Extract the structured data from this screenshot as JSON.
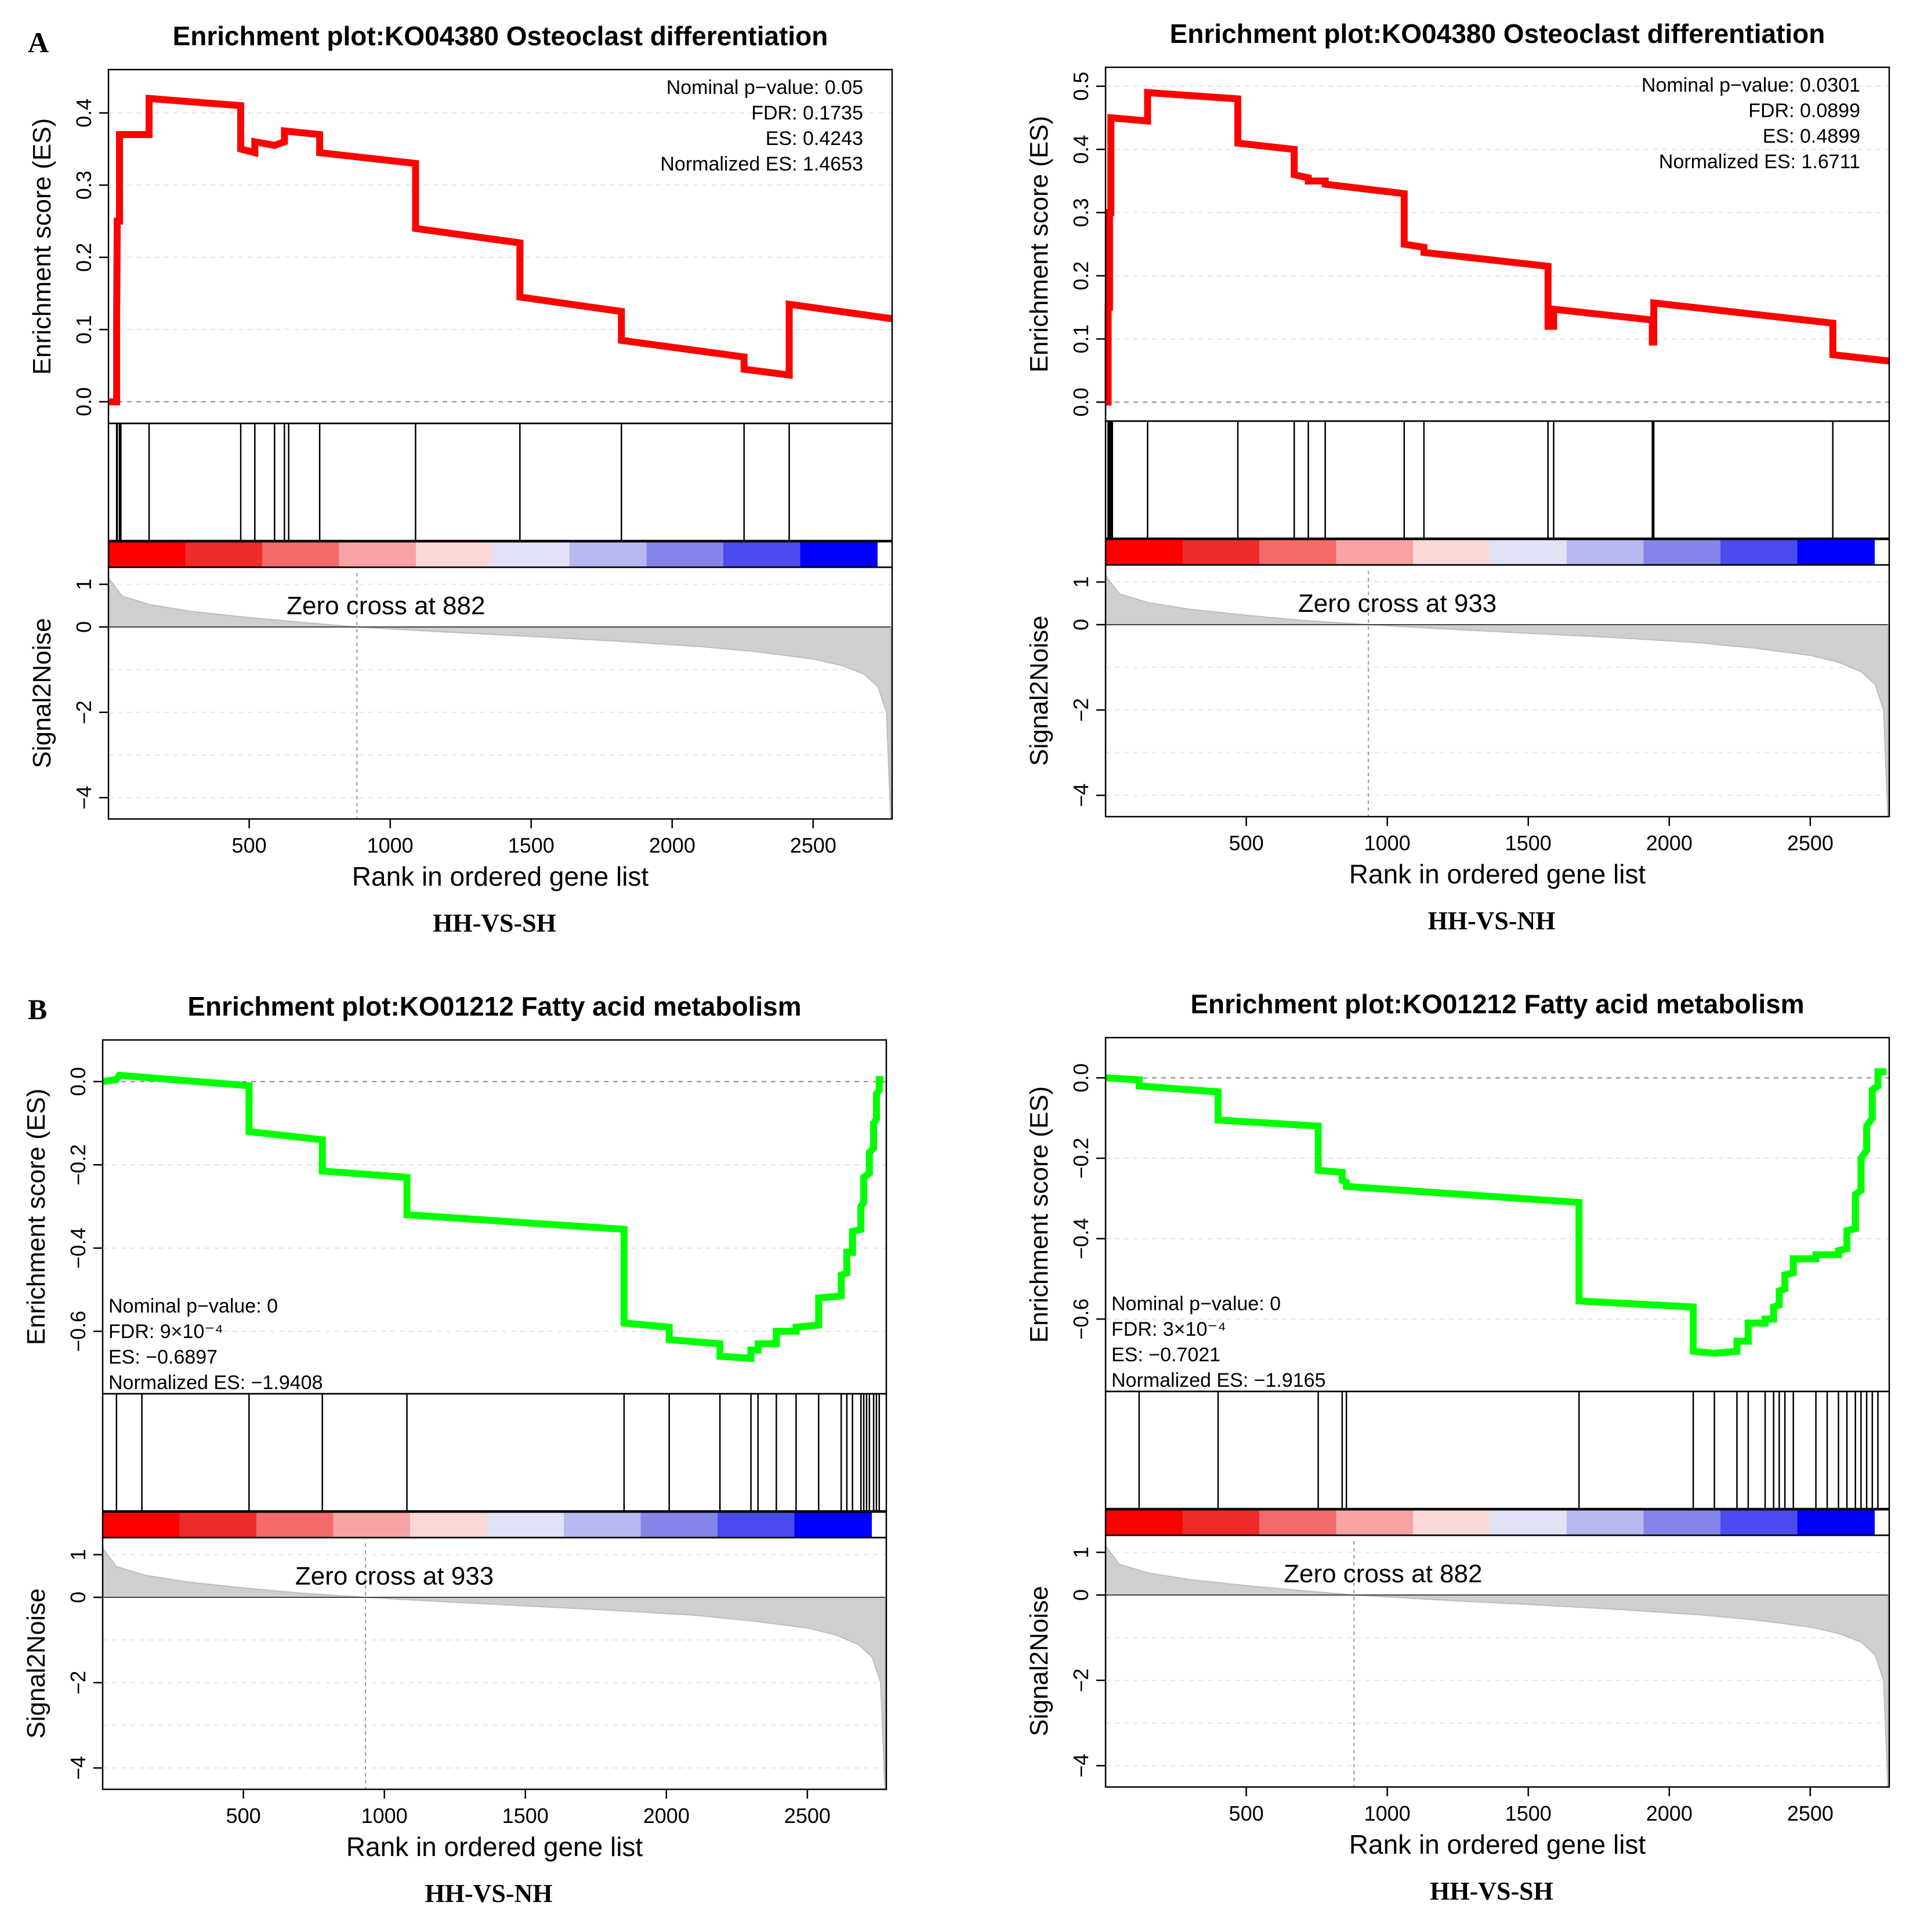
{
  "figure": {
    "panel_labels": [
      "A",
      "B"
    ],
    "common": {
      "xlabel": "Rank in ordered gene list",
      "es_ylabel": "Enrichment score (ES)",
      "s2n_ylabel": "Signal2Noise",
      "x_ticks": [
        500,
        1000,
        1500,
        2000,
        2500
      ],
      "s2n_ticks": [
        1,
        0,
        -2,
        -4
      ]
    }
  },
  "chart_data": [
    {
      "type": "line",
      "panel": "A",
      "title": "Enrichment plot:KO04380 Osteoclast differentiation",
      "caption": "HH-VS-SH",
      "line_color": "#ff0000",
      "xlabel": "Rank in ordered gene list",
      "ylabel": "Enrichment score (ES)",
      "xlim": [
        1,
        2780
      ],
      "ylim": [
        -0.03,
        0.46
      ],
      "y_ticks": [
        0.0,
        0.1,
        0.2,
        0.3,
        0.4
      ],
      "y_tick_labels": [
        "0.0",
        "0.1",
        "0.2",
        "0.3",
        "0.4"
      ],
      "stats_position": "top-right",
      "stats": [
        "Nominal p−value: 0.05",
        "FDR: 0.1735",
        "ES: 0.4243",
        "Normalized ES: 1.4653"
      ],
      "zero_cross": 882,
      "zero_cross_label": "Zero cross at 882",
      "hits": [
        30,
        32,
        40,
        42,
        45,
        145,
        470,
        520,
        590,
        625,
        640,
        750,
        1090,
        1460,
        1820,
        2255,
        2415
      ],
      "es_points": [
        [
          1,
          0.0
        ],
        [
          30,
          0.0
        ],
        [
          30,
          0.12
        ],
        [
          32,
          0.25
        ],
        [
          40,
          0.25
        ],
        [
          40,
          0.37
        ],
        [
          145,
          0.37
        ],
        [
          145,
          0.42
        ],
        [
          470,
          0.41
        ],
        [
          470,
          0.35
        ],
        [
          520,
          0.345
        ],
        [
          520,
          0.36
        ],
        [
          590,
          0.355
        ],
        [
          625,
          0.36
        ],
        [
          625,
          0.375
        ],
        [
          750,
          0.37
        ],
        [
          750,
          0.345
        ],
        [
          1090,
          0.33
        ],
        [
          1090,
          0.24
        ],
        [
          1460,
          0.22
        ],
        [
          1460,
          0.145
        ],
        [
          1820,
          0.125
        ],
        [
          1820,
          0.085
        ],
        [
          2255,
          0.062
        ],
        [
          2255,
          0.045
        ],
        [
          2415,
          0.037
        ],
        [
          2415,
          0.135
        ],
        [
          2780,
          0.115
        ]
      ],
      "s2n_ylim": [
        -4.5,
        1.4
      ],
      "s2n_ranks": [
        1,
        50,
        150,
        300,
        500,
        700,
        882,
        1200,
        1500,
        1800,
        2100,
        2300,
        2500,
        2600,
        2680,
        2730,
        2760,
        2775
      ],
      "s2n_values": [
        1.15,
        0.72,
        0.52,
        0.36,
        0.22,
        0.1,
        0.0,
        -0.12,
        -0.22,
        -0.33,
        -0.46,
        -0.58,
        -0.75,
        -0.9,
        -1.1,
        -1.4,
        -2.0,
        -4.5
      ]
    },
    {
      "type": "line",
      "panel": "A",
      "title": "Enrichment plot:KO04380 Osteoclast differentiation",
      "caption": "HH-VS-NH",
      "line_color": "#ff0000",
      "xlabel": "Rank in ordered gene list",
      "ylabel": "Enrichment score (ES)",
      "xlim": [
        1,
        2780
      ],
      "ylim": [
        -0.03,
        0.53
      ],
      "y_ticks": [
        0.0,
        0.1,
        0.2,
        0.3,
        0.4,
        0.5
      ],
      "y_tick_labels": [
        "0.0",
        "0.1",
        "0.2",
        "0.3",
        "0.4",
        "0.5"
      ],
      "stats_position": "top-right",
      "stats": [
        "Nominal p−value: 0.0301",
        "FDR: 0.0899",
        "ES: 0.4899",
        "Normalized ES: 1.6711"
      ],
      "zero_cross": 933,
      "zero_cross_label": "Zero cross at 933",
      "hits": [
        10,
        15,
        20,
        25,
        150,
        470,
        670,
        720,
        780,
        1060,
        1130,
        1570,
        1590,
        1940,
        1945,
        2580
      ],
      "es_points": [
        [
          1,
          0.0
        ],
        [
          10,
          0.0
        ],
        [
          10,
          0.15
        ],
        [
          15,
          0.15
        ],
        [
          15,
          0.3
        ],
        [
          20,
          0.3
        ],
        [
          20,
          0.45
        ],
        [
          150,
          0.445
        ],
        [
          150,
          0.49
        ],
        [
          470,
          0.48
        ],
        [
          470,
          0.41
        ],
        [
          670,
          0.4
        ],
        [
          670,
          0.36
        ],
        [
          720,
          0.355
        ],
        [
          720,
          0.35
        ],
        [
          780,
          0.35
        ],
        [
          780,
          0.345
        ],
        [
          1060,
          0.33
        ],
        [
          1060,
          0.25
        ],
        [
          1130,
          0.245
        ],
        [
          1130,
          0.237
        ],
        [
          1570,
          0.215
        ],
        [
          1570,
          0.12
        ],
        [
          1590,
          0.12
        ],
        [
          1590,
          0.147
        ],
        [
          1940,
          0.13
        ],
        [
          1940,
          0.095
        ],
        [
          1945,
          0.095
        ],
        [
          1945,
          0.157
        ],
        [
          2580,
          0.125
        ],
        [
          2580,
          0.075
        ],
        [
          2780,
          0.065
        ]
      ],
      "s2n_ylim": [
        -4.5,
        1.4
      ],
      "s2n_ranks": [
        1,
        50,
        150,
        300,
        500,
        700,
        933,
        1200,
        1500,
        1800,
        2100,
        2300,
        2500,
        2600,
        2680,
        2730,
        2760,
        2775
      ],
      "s2n_values": [
        1.15,
        0.72,
        0.52,
        0.36,
        0.22,
        0.1,
        0.0,
        -0.1,
        -0.2,
        -0.3,
        -0.42,
        -0.55,
        -0.72,
        -0.88,
        -1.1,
        -1.4,
        -2.0,
        -4.5
      ]
    },
    {
      "type": "line",
      "panel": "B",
      "title": "Enrichment plot:KO01212 Fatty acid metabolism",
      "caption": "HH-VS-NH",
      "line_color": "#00ff00",
      "xlabel": "Rank in ordered gene list",
      "ylabel": "Enrichment score (ES)",
      "xlim": [
        1,
        2780
      ],
      "ylim": [
        -0.75,
        0.1
      ],
      "y_ticks": [
        0.0,
        -0.2,
        -0.4,
        -0.6
      ],
      "y_tick_labels": [
        "0.0",
        "−0.2",
        "−0.4",
        "−0.6"
      ],
      "stats_position": "bottom-left",
      "stats": [
        "Nominal p−value: 0",
        "FDR: 9×10⁻⁴",
        "ES: −0.6897",
        "Normalized ES: −1.9408"
      ],
      "zero_cross": 933,
      "zero_cross_label": "Zero cross at 933",
      "hits": [
        50,
        140,
        520,
        780,
        1080,
        1850,
        2010,
        2190,
        2300,
        2325,
        2390,
        2460,
        2540,
        2620,
        2640,
        2660,
        2690,
        2700,
        2710,
        2720,
        2735,
        2745,
        2755
      ],
      "es_points": [
        [
          1,
          0.0
        ],
        [
          50,
          0.005
        ],
        [
          60,
          0.015
        ],
        [
          520,
          -0.01
        ],
        [
          520,
          -0.12
        ],
        [
          780,
          -0.14
        ],
        [
          780,
          -0.215
        ],
        [
          1080,
          -0.23
        ],
        [
          1080,
          -0.32
        ],
        [
          1850,
          -0.355
        ],
        [
          1850,
          -0.58
        ],
        [
          2010,
          -0.59
        ],
        [
          2010,
          -0.62
        ],
        [
          2190,
          -0.63
        ],
        [
          2190,
          -0.66
        ],
        [
          2300,
          -0.665
        ],
        [
          2300,
          -0.645
        ],
        [
          2325,
          -0.645
        ],
        [
          2325,
          -0.63
        ],
        [
          2390,
          -0.63
        ],
        [
          2390,
          -0.6
        ],
        [
          2460,
          -0.6
        ],
        [
          2460,
          -0.59
        ],
        [
          2540,
          -0.585
        ],
        [
          2540,
          -0.52
        ],
        [
          2620,
          -0.515
        ],
        [
          2620,
          -0.465
        ],
        [
          2640,
          -0.46
        ],
        [
          2640,
          -0.41
        ],
        [
          2660,
          -0.41
        ],
        [
          2660,
          -0.36
        ],
        [
          2690,
          -0.355
        ],
        [
          2690,
          -0.3
        ],
        [
          2700,
          -0.29
        ],
        [
          2700,
          -0.23
        ],
        [
          2720,
          -0.22
        ],
        [
          2720,
          -0.17
        ],
        [
          2735,
          -0.16
        ],
        [
          2735,
          -0.1
        ],
        [
          2745,
          -0.09
        ],
        [
          2745,
          -0.03
        ],
        [
          2755,
          -0.02
        ],
        [
          2755,
          0.005
        ],
        [
          2770,
          0.005
        ]
      ],
      "s2n_ylim": [
        -4.5,
        1.4
      ],
      "s2n_ranks": [
        1,
        50,
        150,
        300,
        500,
        700,
        933,
        1200,
        1500,
        1800,
        2100,
        2300,
        2500,
        2600,
        2680,
        2730,
        2760,
        2775
      ],
      "s2n_values": [
        1.15,
        0.72,
        0.52,
        0.36,
        0.22,
        0.1,
        0.0,
        -0.1,
        -0.2,
        -0.3,
        -0.42,
        -0.55,
        -0.72,
        -0.88,
        -1.1,
        -1.4,
        -2.0,
        -4.5
      ]
    },
    {
      "type": "line",
      "panel": "B",
      "title": "Enrichment plot:KO01212 Fatty acid metabolism",
      "caption": "HH-VS-SH",
      "line_color": "#00ff00",
      "xlabel": "Rank in ordered gene list",
      "ylabel": "Enrichment score (ES)",
      "xlim": [
        1,
        2780
      ],
      "ylim": [
        -0.78,
        0.1
      ],
      "y_ticks": [
        0.0,
        -0.2,
        -0.4,
        -0.6
      ],
      "y_tick_labels": [
        "0.0",
        "−0.2",
        "−0.4",
        "−0.6"
      ],
      "stats_position": "bottom-left",
      "stats": [
        "Nominal p−value: 0",
        "FDR: 3×10⁻⁴",
        "ES: −0.7021",
        "Normalized ES: −1.9165"
      ],
      "zero_cross": 882,
      "zero_cross_label": "Zero cross at 882",
      "hits": [
        120,
        400,
        755,
        840,
        855,
        1680,
        2085,
        2160,
        2240,
        2280,
        2340,
        2370,
        2390,
        2410,
        2440,
        2520,
        2560,
        2600,
        2630,
        2660,
        2680,
        2700,
        2720,
        2740
      ],
      "es_points": [
        [
          1,
          0.0
        ],
        [
          120,
          -0.005
        ],
        [
          120,
          -0.02
        ],
        [
          400,
          -0.035
        ],
        [
          400,
          -0.105
        ],
        [
          755,
          -0.12
        ],
        [
          755,
          -0.23
        ],
        [
          840,
          -0.235
        ],
        [
          840,
          -0.255
        ],
        [
          855,
          -0.26
        ],
        [
          855,
          -0.27
        ],
        [
          1680,
          -0.31
        ],
        [
          1680,
          -0.555
        ],
        [
          2085,
          -0.57
        ],
        [
          2085,
          -0.68
        ],
        [
          2160,
          -0.685
        ],
        [
          2240,
          -0.68
        ],
        [
          2240,
          -0.655
        ],
        [
          2280,
          -0.655
        ],
        [
          2280,
          -0.61
        ],
        [
          2340,
          -0.61
        ],
        [
          2340,
          -0.6
        ],
        [
          2370,
          -0.6
        ],
        [
          2370,
          -0.57
        ],
        [
          2390,
          -0.565
        ],
        [
          2390,
          -0.53
        ],
        [
          2410,
          -0.525
        ],
        [
          2410,
          -0.49
        ],
        [
          2440,
          -0.485
        ],
        [
          2440,
          -0.45
        ],
        [
          2520,
          -0.45
        ],
        [
          2520,
          -0.44
        ],
        [
          2600,
          -0.44
        ],
        [
          2600,
          -0.43
        ],
        [
          2630,
          -0.425
        ],
        [
          2630,
          -0.38
        ],
        [
          2660,
          -0.375
        ],
        [
          2660,
          -0.29
        ],
        [
          2680,
          -0.28
        ],
        [
          2680,
          -0.2
        ],
        [
          2700,
          -0.18
        ],
        [
          2700,
          -0.12
        ],
        [
          2720,
          -0.1
        ],
        [
          2720,
          -0.03
        ],
        [
          2740,
          -0.02
        ],
        [
          2740,
          0.015
        ],
        [
          2770,
          0.015
        ]
      ],
      "s2n_ylim": [
        -4.5,
        1.4
      ],
      "s2n_ranks": [
        1,
        50,
        150,
        300,
        500,
        700,
        882,
        1200,
        1500,
        1800,
        2100,
        2300,
        2500,
        2600,
        2680,
        2730,
        2760,
        2775
      ],
      "s2n_values": [
        1.15,
        0.72,
        0.52,
        0.36,
        0.22,
        0.1,
        0.0,
        -0.12,
        -0.22,
        -0.33,
        -0.46,
        -0.58,
        -0.75,
        -0.9,
        -1.1,
        -1.4,
        -2.0,
        -4.5
      ]
    }
  ]
}
